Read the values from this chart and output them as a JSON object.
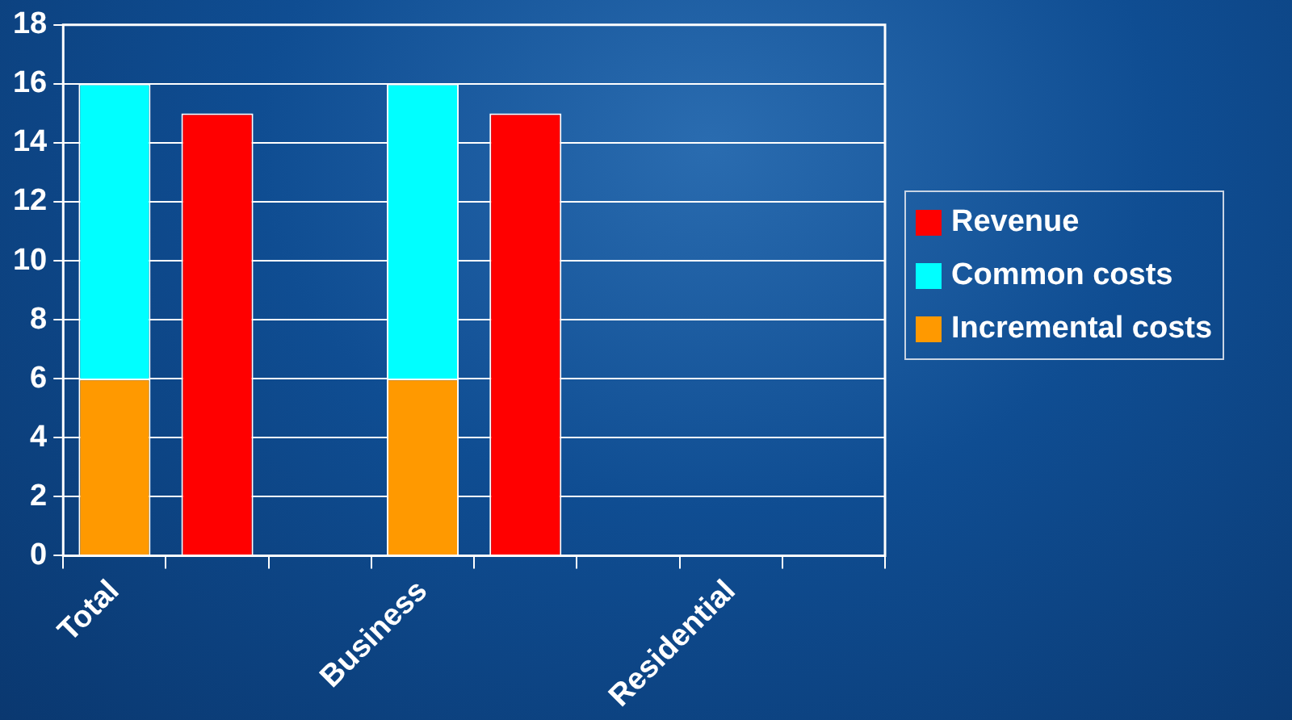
{
  "chart_data": {
    "type": "bar",
    "stacked": true,
    "categories": [
      "Total",
      null,
      null,
      "Business",
      null,
      null,
      "Residential",
      null
    ],
    "series": [
      {
        "name": "Incremental costs",
        "color": "#ff9900",
        "values": [
          6,
          null,
          null,
          6,
          null,
          null,
          null,
          null
        ]
      },
      {
        "name": "Common costs",
        "color": "#00ffff",
        "values": [
          10,
          null,
          null,
          10,
          null,
          null,
          null,
          null
        ]
      },
      {
        "name": "Revenue",
        "color": "#ff0000",
        "values": [
          null,
          15,
          null,
          null,
          15,
          null,
          null,
          null
        ]
      }
    ],
    "ylim": [
      0,
      18
    ],
    "yticks": [
      0,
      2,
      4,
      6,
      8,
      10,
      12,
      14,
      16,
      18
    ],
    "grid": "y",
    "legend": "right"
  }
}
